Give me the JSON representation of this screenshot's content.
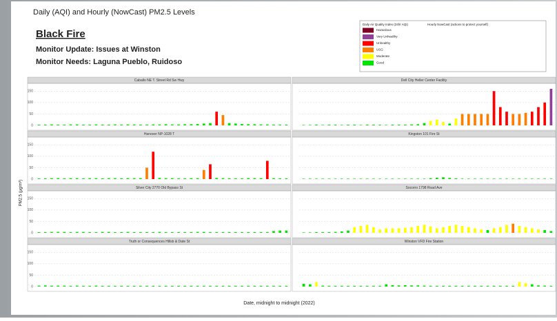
{
  "chart_data": {
    "type": "bar",
    "title": "Daily (AQI) and Hourly (NowCast) PM2.5 Levels",
    "fire": "Black Fire",
    "update": "Monitor Update:  Issues at Winston",
    "needs": "Monitor Needs: Laguna Pueblo, Ruidoso",
    "xlabel": "Date, midnight to midnight (2022)",
    "ylabel": "PM2.5 (µg/m³)",
    "legend": {
      "header": [
        "Daily Air Quality Index (24hr AQI)",
        "Hourly NowCast (actions to protect yourself)"
      ],
      "items": [
        {
          "name": "Hazardous",
          "color": "#7e0023"
        },
        {
          "name": "Very Unhealthy",
          "color": "#8f3f97"
        },
        {
          "name": "Unhealthy",
          "color": "#ff0000"
        },
        {
          "name": "USG",
          "color": "#ff7e00"
        },
        {
          "name": "Moderate",
          "color": "#ffff00"
        },
        {
          "name": "Good",
          "color": "#00e400"
        }
      ]
    },
    "ylim": [
      0,
      175
    ],
    "yticks": [
      0,
      50,
      100,
      150
    ],
    "panels": [
      {
        "title": "Caballo NE T. Street Rd Sw Hwy",
        "values": [
          3,
          3,
          4,
          3,
          3,
          4,
          4,
          3,
          3,
          4,
          3,
          3,
          4,
          3,
          4,
          4,
          3,
          3,
          4,
          4,
          5,
          4,
          4,
          5,
          5,
          6,
          8,
          10,
          60,
          45,
          10,
          8,
          6,
          5,
          5,
          4,
          4,
          3,
          3,
          3
        ]
      },
      {
        "title": "Dell City Heller Center Facility",
        "values": [
          2,
          2,
          3,
          2,
          3,
          3,
          2,
          3,
          3,
          2,
          3,
          3,
          3,
          2,
          3,
          3,
          3,
          4,
          5,
          10,
          20,
          25,
          15,
          8,
          30,
          50,
          50,
          50,
          50,
          50,
          150,
          80,
          60,
          50,
          50,
          55,
          60,
          80,
          100,
          160
        ]
      },
      {
        "title": "Hanover NP-1028 T",
        "values": [
          3,
          3,
          4,
          4,
          3,
          4,
          4,
          3,
          4,
          4,
          3,
          4,
          4,
          3,
          4,
          4,
          4,
          50,
          120,
          5,
          4,
          4,
          3,
          3,
          4,
          4,
          40,
          65,
          5,
          4,
          3,
          3,
          3,
          4,
          4,
          4,
          80,
          4,
          3,
          3
        ]
      },
      {
        "title": "Kingston 101 Fire St",
        "values": [
          2,
          2,
          2,
          2,
          2,
          2,
          2,
          2,
          2,
          2,
          2,
          2,
          2,
          2,
          2,
          2,
          2,
          2,
          2,
          2,
          4,
          6,
          8,
          5,
          3,
          2,
          2,
          2,
          2,
          2,
          2,
          2,
          2,
          2,
          2,
          2,
          2,
          2,
          2,
          2
        ]
      },
      {
        "title": "Silver City 2770 Old Bypass St",
        "values": [
          3,
          3,
          4,
          4,
          4,
          3,
          4,
          4,
          3,
          3,
          4,
          4,
          3,
          3,
          4,
          3,
          3,
          3,
          3,
          4,
          3,
          3,
          3,
          3,
          3,
          4,
          4,
          3,
          3,
          3,
          3,
          3,
          3,
          3,
          3,
          3,
          3,
          8,
          10,
          10
        ]
      },
      {
        "title": "Socorro 1798 Road Ave",
        "values": [
          2,
          2,
          3,
          3,
          3,
          4,
          6,
          10,
          25,
          30,
          35,
          25,
          15,
          20,
          20,
          20,
          22,
          25,
          30,
          35,
          28,
          20,
          25,
          30,
          35,
          30,
          25,
          20,
          15,
          12,
          20,
          25,
          35,
          40,
          30,
          25,
          20,
          15,
          12,
          8
        ]
      },
      {
        "title": "Truth or Consequences Hillsb & Date St",
        "values": [
          4,
          5,
          4,
          4,
          4,
          3,
          4,
          3,
          3,
          4,
          3,
          3,
          3,
          3,
          3,
          3,
          3,
          3,
          3,
          3,
          3,
          3,
          3,
          3,
          3,
          3,
          3,
          3,
          3,
          3,
          3,
          3,
          3,
          3,
          3,
          3,
          3,
          3,
          3,
          3
        ]
      },
      {
        "title": "Winston VFD Fire Station",
        "values": [
          12,
          10,
          20,
          4,
          3,
          3,
          3,
          3,
          3,
          3,
          3,
          3,
          3,
          10,
          6,
          5,
          6,
          5,
          5,
          4,
          3,
          3,
          3,
          3,
          3,
          3,
          3,
          3,
          3,
          3,
          3,
          3,
          3,
          3,
          20,
          15,
          10,
          5,
          4,
          3
        ]
      }
    ]
  }
}
